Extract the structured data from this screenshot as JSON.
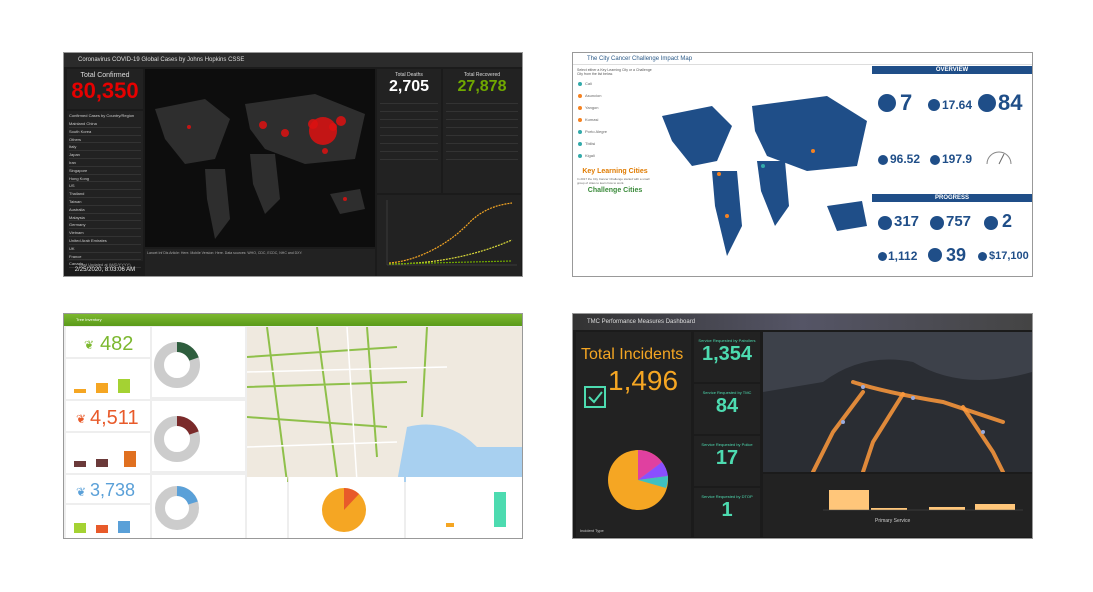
{
  "covid": {
    "title": "Coronavirus COVID-19 Global Cases by Johns Hopkins CSSE",
    "total_confirmed_label": "Total Confirmed",
    "total_confirmed": "80,350",
    "list_header": "Confirmed Cases by Country/Region",
    "countries": [
      "Mainland China",
      "South Korea",
      "Others",
      "Italy",
      "Japan",
      "Iran",
      "Singapore",
      "Hong Kong",
      "US",
      "Thailand",
      "Taiwan",
      "Australia",
      "Malaysia",
      "Germany",
      "Vietnam",
      "United Arab Emirates",
      "UK",
      "France",
      "Canada"
    ],
    "last_updated_label": "Last Updated at (M/D/YYYY)",
    "last_updated": "2/25/2020, 8:03:06 AM",
    "total_deaths_label": "Total Deaths",
    "total_deaths": "2,705",
    "total_recovered_label": "Total Recovered",
    "total_recovered": "27,878"
  },
  "cancer": {
    "title": "The City Cancer Challenge Impact Map",
    "categories": [
      "Cali",
      "Asuncion",
      "Yangon",
      "Kumasi",
      "Porto Alegre",
      "Tbilisi",
      "Kigali"
    ],
    "key_cities": "Key Learning Cities",
    "challenge_cities": "Challenge Cities",
    "overview": "OVERVIEW",
    "progress": "PROGRESS",
    "ov": [
      "7",
      "17.64",
      "84",
      "96.52",
      "197.9"
    ],
    "pr": [
      "317",
      "757",
      "2",
      "1,112",
      "39",
      "$17,100"
    ]
  },
  "trees": {
    "title": "Tree Inventory",
    "n1": "482",
    "n2": "4,511",
    "n3": "3,738"
  },
  "traffic": {
    "title": "TMC Performance Measures Dashboard",
    "total_label": "Total Incidents",
    "total": "1,496",
    "stats": [
      {
        "label": "Service Requested by Patrollers",
        "value": "1,354"
      },
      {
        "label": "Service Requested by TMC",
        "value": "84"
      },
      {
        "label": "Service Requested by Police",
        "value": "17"
      },
      {
        "label": "Service Requested by DTOP",
        "value": "1"
      }
    ],
    "bar_axis": "Primary Service",
    "pie_label": "Incident Type"
  },
  "colors": {
    "covid_red": "#e60000",
    "recovered": "#70a800",
    "cancer_blue": "#1f4e88",
    "tree_green": "#7cb82f",
    "teal": "#4ddbb0",
    "orange": "#f5a623"
  }
}
